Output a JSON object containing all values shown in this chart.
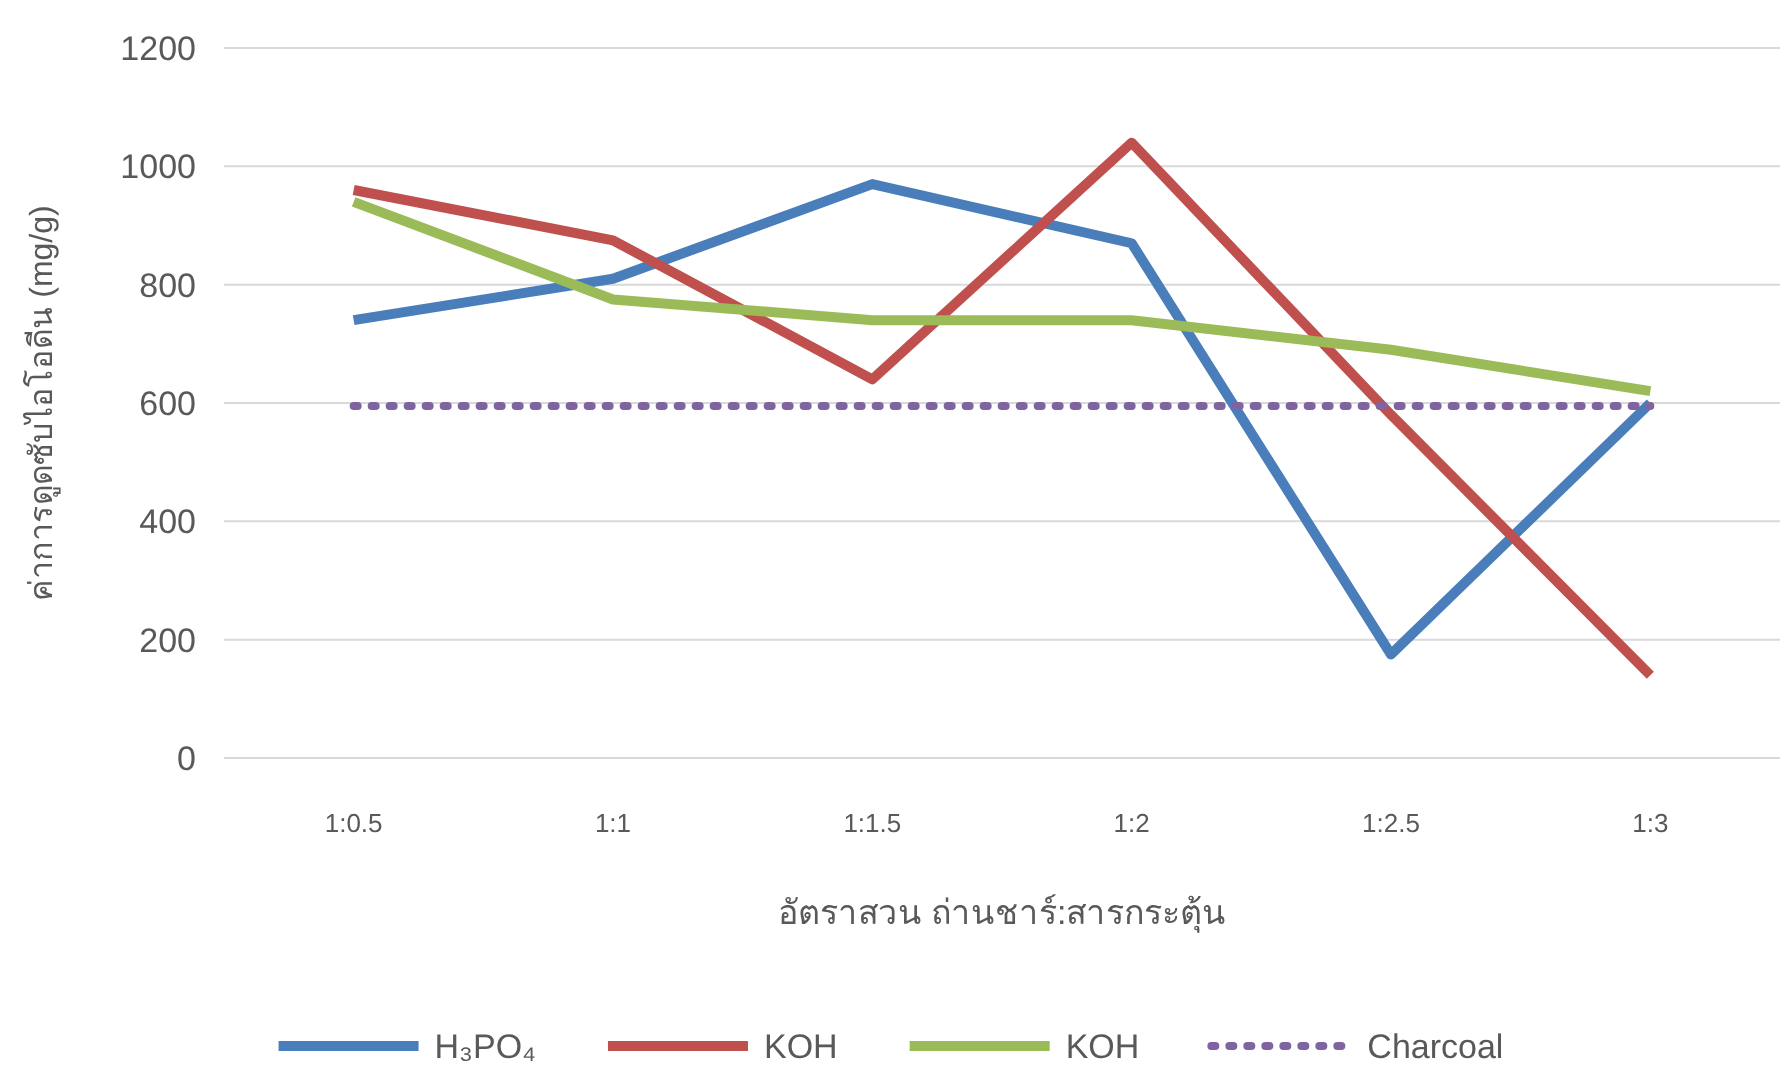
{
  "chart_data": {
    "type": "line",
    "xlabel": "อัตราสวน ถ่านชาร์:สารกระตุ้น",
    "ylabel": "ค่าการดูดซับไอโอดีน (mg/g)",
    "categories": [
      "1:0.5",
      "1:1",
      "1:1.5",
      "1:2",
      "1:2.5",
      "1:3"
    ],
    "ylim": [
      0,
      1200
    ],
    "yticks": [
      0,
      200,
      400,
      600,
      800,
      1000,
      1200
    ],
    "grid": "y",
    "legend": "bottom",
    "marker": "none",
    "series": [
      {
        "name": "H₃PO₄",
        "color": "#4a7ebb",
        "values": [
          740,
          810,
          970,
          870,
          175,
          600
        ]
      },
      {
        "name": "KOH",
        "color": "#c0504d",
        "values": [
          960,
          875,
          640,
          1040,
          580,
          140
        ]
      },
      {
        "name": "KOH",
        "color": "#9bbb59",
        "values": [
          940,
          775,
          740,
          740,
          690,
          620
        ]
      },
      {
        "name": "Charcoal",
        "color": "#8064a2",
        "line_style": "dotted",
        "values": [
          595,
          595,
          595,
          595,
          595,
          595
        ]
      }
    ]
  }
}
